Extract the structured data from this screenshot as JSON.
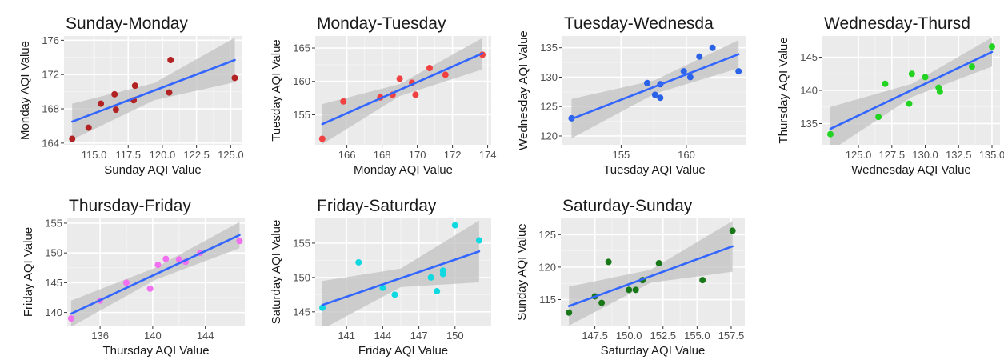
{
  "theme": {
    "panel_bg": "#ebebeb",
    "grid_major": "#ffffff",
    "grid_minor": "#f4f4f4",
    "band_fill": "#c2c2c2",
    "fit_line": "#3366ff",
    "tick_text": "#4d4d4d"
  },
  "chart_data": [
    {
      "type": "scatter",
      "title": "Sunday-Monday",
      "xlabel": "Sunday AQI Value",
      "ylabel": "Monday AQI Value",
      "point_color": "#b22222",
      "xlim": [
        112.8,
        125.8
      ],
      "ylim": [
        163.8,
        176.5
      ],
      "xticks": [
        115.0,
        117.5,
        120.0,
        122.5,
        125.0
      ],
      "xtick_labels": [
        "115.0",
        "117.5",
        "120.0",
        "122.5",
        "125.0"
      ],
      "yticks": [
        164,
        168,
        172,
        176
      ],
      "ytick_labels": [
        "164",
        "168",
        "172",
        "176"
      ],
      "points": [
        {
          "x": 113.4,
          "y": 164.5
        },
        {
          "x": 114.6,
          "y": 165.8
        },
        {
          "x": 115.5,
          "y": 168.6
        },
        {
          "x": 116.5,
          "y": 169.7
        },
        {
          "x": 116.6,
          "y": 167.9
        },
        {
          "x": 117.9,
          "y": 169.0
        },
        {
          "x": 118.0,
          "y": 170.7
        },
        {
          "x": 120.5,
          "y": 169.9
        },
        {
          "x": 120.6,
          "y": 173.7
        },
        {
          "x": 125.3,
          "y": 171.6
        }
      ],
      "fit": {
        "x": [
          113.4,
          125.3
        ],
        "y": [
          166.5,
          173.7
        ]
      },
      "band": {
        "x": [
          113.4,
          119.4,
          125.3
        ],
        "upper": [
          168.6,
          171.0,
          176.3
        ],
        "lower": [
          164.4,
          169.0,
          171.1
        ]
      }
    },
    {
      "type": "scatter",
      "title": "Monday-Tuesday",
      "xlabel": "Monday AQI Value",
      "ylabel": "Tuesday AQI Value",
      "point_color": "#f04040",
      "xlim": [
        164.2,
        174.2
      ],
      "ylim": [
        150.5,
        166.8
      ],
      "xticks": [
        166,
        168,
        170,
        172,
        174
      ],
      "xtick_labels": [
        "166",
        "168",
        "170",
        "172",
        "174"
      ],
      "yticks": [
        155,
        160,
        165
      ],
      "ytick_labels": [
        "155",
        "160",
        "165"
      ],
      "points": [
        {
          "x": 164.6,
          "y": 151.4
        },
        {
          "x": 165.8,
          "y": 157.0
        },
        {
          "x": 167.9,
          "y": 157.6
        },
        {
          "x": 168.6,
          "y": 158.0
        },
        {
          "x": 169.0,
          "y": 160.4
        },
        {
          "x": 169.7,
          "y": 159.8
        },
        {
          "x": 169.9,
          "y": 158.0
        },
        {
          "x": 170.7,
          "y": 162.0
        },
        {
          "x": 171.6,
          "y": 161.0
        },
        {
          "x": 173.7,
          "y": 164.0
        }
      ],
      "fit": {
        "x": [
          164.6,
          173.7
        ],
        "y": [
          153.6,
          164.2
        ]
      },
      "band": {
        "x": [
          164.6,
          169.0,
          173.7
        ],
        "upper": [
          156.6,
          159.6,
          166.5
        ],
        "lower": [
          150.6,
          157.8,
          161.8
        ]
      }
    },
    {
      "type": "scatter",
      "title": "Tuesday-Wednesda",
      "xlabel": "Tuesday AQI Value",
      "ylabel": "Wednesday AQI Value",
      "point_color": "#2a62e8",
      "xlim": [
        150.5,
        164.6
      ],
      "ylim": [
        118.5,
        137.0
      ],
      "xticks": [
        155,
        160
      ],
      "xtick_labels": [
        "155",
        "160"
      ],
      "yticks": [
        120,
        125,
        130,
        135
      ],
      "ytick_labels": [
        "120",
        "125",
        "130",
        "135"
      ],
      "points": [
        {
          "x": 151.2,
          "y": 123.0
        },
        {
          "x": 157.0,
          "y": 129.0
        },
        {
          "x": 157.6,
          "y": 127.0
        },
        {
          "x": 158.0,
          "y": 128.8
        },
        {
          "x": 158.0,
          "y": 126.5
        },
        {
          "x": 159.8,
          "y": 131.0
        },
        {
          "x": 160.3,
          "y": 130.0
        },
        {
          "x": 161.0,
          "y": 133.5
        },
        {
          "x": 162.0,
          "y": 135.0
        },
        {
          "x": 164.0,
          "y": 131.0
        }
      ],
      "fit": {
        "x": [
          151.2,
          164.0
        ],
        "y": [
          122.9,
          133.9
        ]
      },
      "band": {
        "x": [
          151.2,
          157.6,
          164.0
        ],
        "upper": [
          126.3,
          129.5,
          136.3
        ],
        "lower": [
          119.6,
          127.2,
          131.5
        ]
      }
    },
    {
      "type": "scatter",
      "title": "Wednesday-Thursd",
      "xlabel": "Wednesday AQI Value",
      "ylabel": "Thursday AQI Value",
      "point_color": "#22d322",
      "xlim": [
        122.3,
        135.6
      ],
      "ylim": [
        131.8,
        148.2
      ],
      "xticks": [
        125.0,
        127.5,
        130.0,
        132.5,
        135.0
      ],
      "xtick_labels": [
        "125.0",
        "127.5",
        "130.0",
        "132.5",
        "135.0"
      ],
      "yticks": [
        135,
        140,
        145
      ],
      "ytick_labels": [
        "135",
        "140",
        "145"
      ],
      "points": [
        {
          "x": 122.9,
          "y": 133.4
        },
        {
          "x": 126.5,
          "y": 136.0
        },
        {
          "x": 127.0,
          "y": 141.0
        },
        {
          "x": 128.8,
          "y": 138.0
        },
        {
          "x": 129.0,
          "y": 142.5
        },
        {
          "x": 130.0,
          "y": 142.0
        },
        {
          "x": 131.0,
          "y": 140.4
        },
        {
          "x": 131.1,
          "y": 139.8
        },
        {
          "x": 133.5,
          "y": 143.6
        },
        {
          "x": 135.0,
          "y": 146.6
        }
      ],
      "fit": {
        "x": [
          122.9,
          135.0
        ],
        "y": [
          134.2,
          145.8
        ]
      },
      "band": {
        "x": [
          122.9,
          129.0,
          135.0
        ],
        "upper": [
          137.5,
          141.0,
          148.0
        ],
        "lower": [
          130.9,
          139.0,
          143.6
        ]
      }
    },
    {
      "type": "scatter",
      "title": "Thursday-Friday",
      "xlabel": "Thursday AQI Value",
      "ylabel": "Friday AQI Value",
      "point_color": "#f070f0",
      "xlim": [
        133.5,
        147.0
      ],
      "ylim": [
        137.8,
        155.8
      ],
      "xticks": [
        136,
        140,
        144
      ],
      "xtick_labels": [
        "136",
        "140",
        "144"
      ],
      "yticks": [
        140,
        145,
        150,
        155
      ],
      "ytick_labels": [
        "140",
        "145",
        "150",
        "155"
      ],
      "points": [
        {
          "x": 133.8,
          "y": 139.0
        },
        {
          "x": 136.0,
          "y": 142.0
        },
        {
          "x": 138.0,
          "y": 145.0
        },
        {
          "x": 139.8,
          "y": 144.0
        },
        {
          "x": 140.4,
          "y": 148.0
        },
        {
          "x": 141.0,
          "y": 149.0
        },
        {
          "x": 142.0,
          "y": 148.9
        },
        {
          "x": 142.5,
          "y": 148.5
        },
        {
          "x": 143.6,
          "y": 150.0
        },
        {
          "x": 146.6,
          "y": 152.0
        }
      ],
      "fit": {
        "x": [
          133.8,
          146.6
        ],
        "y": [
          139.8,
          153.0
        ]
      },
      "band": {
        "x": [
          133.8,
          140.2,
          146.6
        ],
        "upper": [
          142.0,
          147.5,
          155.2
        ],
        "lower": [
          137.6,
          145.5,
          150.8
        ]
      }
    },
    {
      "type": "scatter",
      "title": "Friday-Saturday",
      "xlabel": "Friday AQI Value",
      "ylabel": "Saturday AQI Value",
      "point_color": "#10d8e0",
      "xlim": [
        138.4,
        153.0
      ],
      "ylim": [
        143.0,
        158.6
      ],
      "xticks": [
        141,
        144,
        147,
        150
      ],
      "xtick_labels": [
        "141",
        "144",
        "147",
        "150"
      ],
      "yticks": [
        145,
        150,
        155
      ],
      "ytick_labels": [
        "145",
        "150",
        "155"
      ],
      "points": [
        {
          "x": 139.0,
          "y": 145.6
        },
        {
          "x": 142.0,
          "y": 152.2
        },
        {
          "x": 144.0,
          "y": 148.5
        },
        {
          "x": 145.0,
          "y": 147.5
        },
        {
          "x": 148.0,
          "y": 150.0
        },
        {
          "x": 148.5,
          "y": 148.0
        },
        {
          "x": 149.0,
          "y": 151.0
        },
        {
          "x": 149.0,
          "y": 150.5
        },
        {
          "x": 150.0,
          "y": 157.6
        },
        {
          "x": 152.0,
          "y": 155.4
        }
      ],
      "fit": {
        "x": [
          139.0,
          152.0
        ],
        "y": [
          146.0,
          153.8
        ]
      },
      "band": {
        "x": [
          139.0,
          145.5,
          152.0
        ],
        "upper": [
          149.5,
          151.3,
          158.3
        ],
        "lower": [
          142.5,
          148.6,
          149.3
        ]
      }
    },
    {
      "type": "scatter",
      "title": "Saturday-Sunday",
      "xlabel": "Saturday AQI Value",
      "ylabel": "Sunday AQI Value",
      "point_color": "#187818",
      "xlim": [
        145.0,
        158.5
      ],
      "ylim": [
        111.0,
        127.5
      ],
      "xticks": [
        147.5,
        150.0,
        152.5,
        155.0,
        157.5
      ],
      "xtick_labels": [
        "147.5",
        "150.0",
        "152.5",
        "155.0",
        "157.5"
      ],
      "yticks": [
        115,
        120,
        125
      ],
      "ytick_labels": [
        "115",
        "120",
        "125"
      ],
      "points": [
        {
          "x": 145.6,
          "y": 113.0
        },
        {
          "x": 147.5,
          "y": 115.5
        },
        {
          "x": 148.0,
          "y": 114.5
        },
        {
          "x": 148.5,
          "y": 120.8
        },
        {
          "x": 150.0,
          "y": 116.5
        },
        {
          "x": 150.5,
          "y": 116.5
        },
        {
          "x": 151.0,
          "y": 118.0
        },
        {
          "x": 152.2,
          "y": 120.6
        },
        {
          "x": 155.4,
          "y": 118.0
        },
        {
          "x": 157.6,
          "y": 125.6
        }
      ],
      "fit": {
        "x": [
          145.6,
          157.6
        ],
        "y": [
          114.0,
          123.2
        ]
      },
      "band": {
        "x": [
          145.6,
          151.6,
          157.6
        ],
        "upper": [
          117.0,
          119.6,
          127.1
        ],
        "lower": [
          111.0,
          117.6,
          119.3
        ]
      }
    }
  ]
}
